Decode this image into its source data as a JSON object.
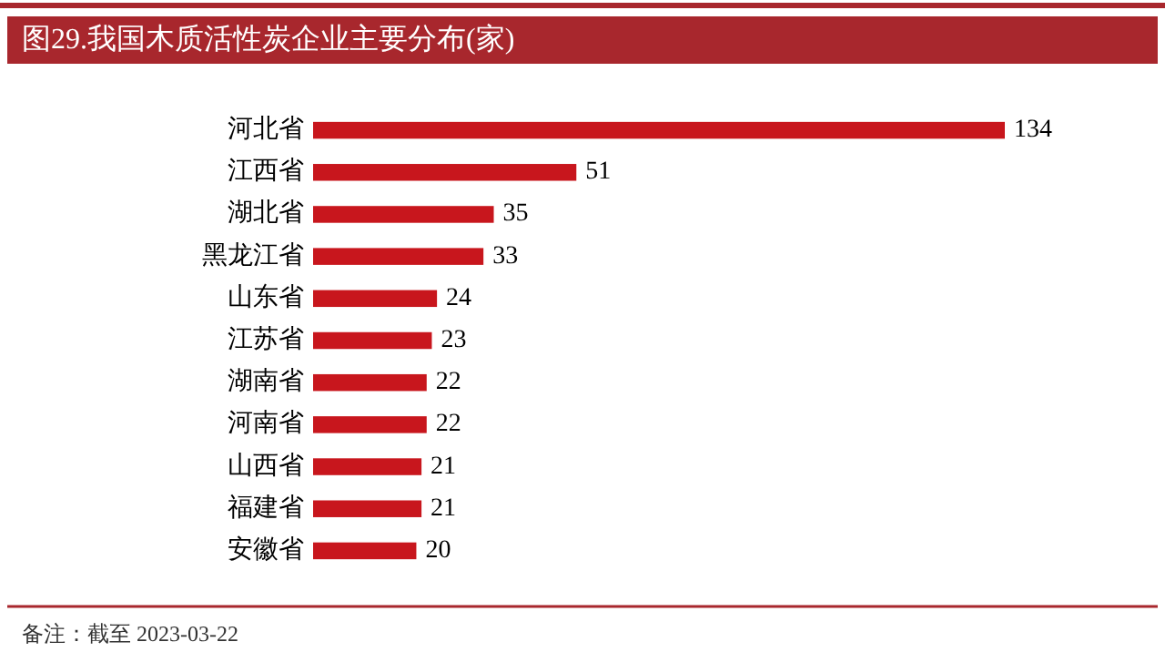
{
  "chart_data": {
    "type": "bar",
    "orientation": "horizontal",
    "title": "图29.我国木质活性炭企业主要分布(家)",
    "categories": [
      "河北省",
      "江西省",
      "湖北省",
      "黑龙江省",
      "山东省",
      "江苏省",
      "湖南省",
      "河南省",
      "山西省",
      "福建省",
      "安徽省"
    ],
    "values": [
      134,
      51,
      35,
      33,
      24,
      23,
      22,
      22,
      21,
      21,
      20
    ],
    "color": "#c8161d",
    "data_labels": true,
    "annotations": [
      "备注：截至 2023-03-22"
    ]
  }
}
